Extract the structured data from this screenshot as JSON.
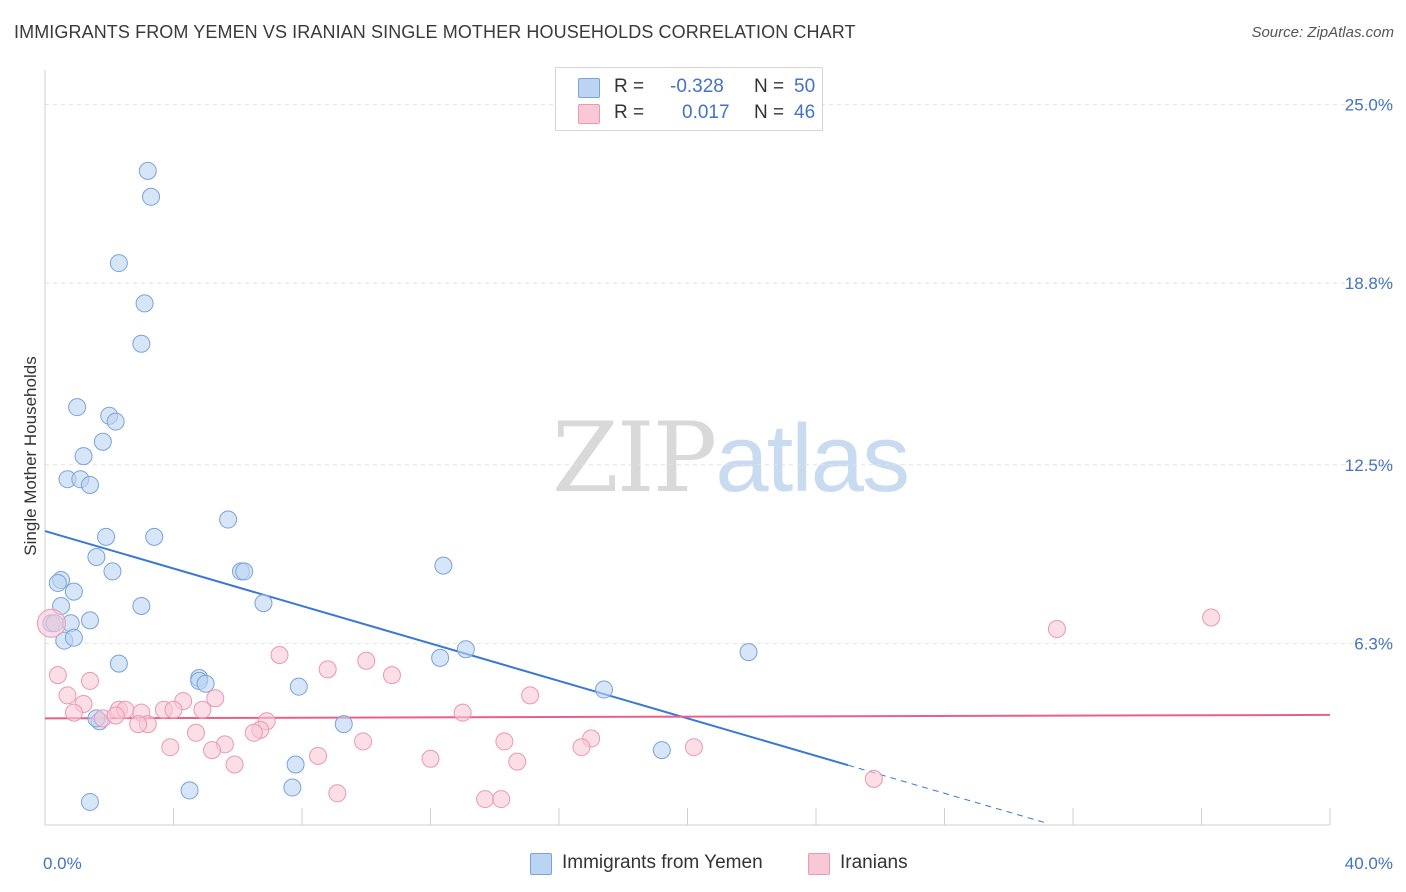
{
  "header": {
    "title": "IMMIGRANTS FROM YEMEN VS IRANIAN SINGLE MOTHER HOUSEHOLDS CORRELATION CHART",
    "source": "Source: ZipAtlas.com"
  },
  "watermark": {
    "zip": "ZIP",
    "atlas": "atlas"
  },
  "legend": {
    "rows": [
      {
        "r_label": "R =",
        "r_value": "-0.328",
        "n_label": "N =",
        "n_value": "50"
      },
      {
        "r_label": "R =",
        "r_value": "0.017",
        "n_label": "N =",
        "n_value": "46"
      }
    ]
  },
  "bottom_legend": {
    "items": [
      {
        "label": "Immigrants from Yemen"
      },
      {
        "label": "Iranians"
      }
    ]
  },
  "colors": {
    "yemen_fill": "#bcd4f3",
    "yemen_stroke": "#7aa3d8",
    "yemen_line": "#3a78d4",
    "iranian_fill": "#f8c8d6",
    "iranian_stroke": "#e899b4",
    "iranian_line": "#e8608a",
    "axis_text": "#4472c4",
    "grid": "#e3e3e3"
  },
  "chart_data": {
    "type": "scatter",
    "title": "IMMIGRANTS FROM YEMEN VS IRANIAN SINGLE MOTHER HOUSEHOLDS CORRELATION CHART",
    "xlabel": "",
    "ylabel": "Single Mother Households",
    "xlim": [
      0,
      40
    ],
    "ylim": [
      0,
      26.2
    ],
    "x_ticks": [
      {
        "value": 0,
        "label": "0.0%"
      },
      {
        "value": 40,
        "label": "40.0%"
      }
    ],
    "y_ticks": [
      {
        "value": 6.3,
        "label": "6.3%"
      },
      {
        "value": 12.5,
        "label": "12.5%"
      },
      {
        "value": 18.8,
        "label": "18.8%"
      },
      {
        "value": 25.0,
        "label": "25.0%"
      }
    ],
    "grid": true,
    "series": [
      {
        "name": "Immigrants from Yemen",
        "points": [
          [
            3.2,
            22.7
          ],
          [
            3.3,
            21.8
          ],
          [
            2.3,
            19.5
          ],
          [
            3.1,
            18.1
          ],
          [
            3.0,
            16.7
          ],
          [
            1.0,
            14.5
          ],
          [
            2.0,
            14.2
          ],
          [
            2.2,
            14.0
          ],
          [
            1.8,
            13.3
          ],
          [
            1.2,
            12.8
          ],
          [
            0.7,
            12.0
          ],
          [
            1.1,
            12.0
          ],
          [
            1.4,
            11.8
          ],
          [
            5.7,
            10.6
          ],
          [
            1.9,
            10.0
          ],
          [
            3.4,
            10.0
          ],
          [
            1.6,
            9.3
          ],
          [
            12.4,
            9.0
          ],
          [
            2.1,
            8.8
          ],
          [
            6.1,
            8.8
          ],
          [
            6.2,
            8.8
          ],
          [
            0.5,
            8.5
          ],
          [
            0.4,
            8.4
          ],
          [
            0.9,
            8.1
          ],
          [
            0.5,
            7.6
          ],
          [
            3.0,
            7.6
          ],
          [
            6.8,
            7.7
          ],
          [
            0.8,
            7.0
          ],
          [
            1.4,
            7.1
          ],
          [
            0.2,
            7.0
          ],
          [
            0.6,
            6.4
          ],
          [
            0.9,
            6.5
          ],
          [
            13.1,
            6.1
          ],
          [
            21.9,
            6.0
          ],
          [
            12.3,
            5.8
          ],
          [
            2.3,
            5.6
          ],
          [
            4.8,
            5.1
          ],
          [
            4.8,
            5.0
          ],
          [
            5.0,
            4.9
          ],
          [
            7.9,
            4.8
          ],
          [
            17.4,
            4.7
          ],
          [
            1.7,
            3.6
          ],
          [
            9.3,
            3.5
          ],
          [
            19.2,
            2.6
          ],
          [
            7.8,
            2.1
          ],
          [
            4.5,
            1.2
          ],
          [
            7.7,
            1.3
          ],
          [
            1.4,
            0.8
          ],
          [
            1.6,
            3.7
          ],
          [
            0.3,
            7.0
          ]
        ]
      },
      {
        "name": "Iranians",
        "points": [
          [
            0.2,
            7.0
          ],
          [
            31.5,
            6.8
          ],
          [
            36.3,
            7.2
          ],
          [
            7.3,
            5.9
          ],
          [
            10.0,
            5.7
          ],
          [
            8.8,
            5.4
          ],
          [
            10.8,
            5.2
          ],
          [
            0.4,
            5.2
          ],
          [
            1.4,
            5.0
          ],
          [
            0.7,
            4.5
          ],
          [
            15.1,
            4.5
          ],
          [
            5.3,
            4.4
          ],
          [
            4.3,
            4.3
          ],
          [
            1.2,
            4.2
          ],
          [
            2.3,
            4.0
          ],
          [
            2.5,
            4.0
          ],
          [
            3.0,
            3.9
          ],
          [
            3.7,
            4.0
          ],
          [
            4.0,
            4.0
          ],
          [
            4.9,
            4.0
          ],
          [
            13.0,
            3.9
          ],
          [
            0.9,
            3.9
          ],
          [
            1.8,
            3.7
          ],
          [
            2.2,
            3.8
          ],
          [
            3.2,
            3.5
          ],
          [
            2.9,
            3.5
          ],
          [
            6.9,
            3.6
          ],
          [
            6.7,
            3.3
          ],
          [
            6.5,
            3.2
          ],
          [
            4.7,
            3.2
          ],
          [
            17.0,
            3.0
          ],
          [
            5.6,
            2.8
          ],
          [
            9.9,
            2.9
          ],
          [
            14.3,
            2.9
          ],
          [
            3.9,
            2.7
          ],
          [
            5.2,
            2.6
          ],
          [
            16.7,
            2.7
          ],
          [
            20.2,
            2.7
          ],
          [
            8.5,
            2.4
          ],
          [
            12.0,
            2.3
          ],
          [
            14.7,
            2.2
          ],
          [
            5.9,
            2.1
          ],
          [
            25.8,
            1.6
          ],
          [
            9.1,
            1.1
          ],
          [
            13.7,
            0.9
          ],
          [
            14.2,
            0.9
          ]
        ]
      }
    ],
    "trend_lines": [
      {
        "name": "Immigrants from Yemen",
        "x_solid": [
          0,
          25
        ],
        "x_dashed": [
          25,
          31.2
        ],
        "slope": -0.325,
        "intercept": 10.2
      },
      {
        "name": "Iranians",
        "x_solid": [
          0,
          40
        ],
        "slope": 0.003,
        "intercept": 3.7
      }
    ]
  }
}
